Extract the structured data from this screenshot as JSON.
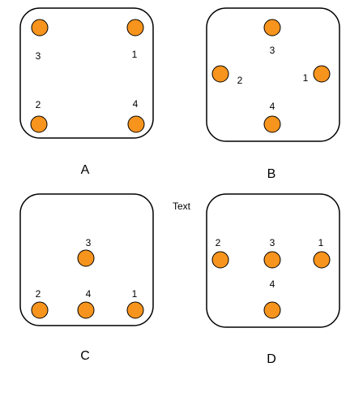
{
  "colors": {
    "dot_fill": "#F7941D",
    "dot_stroke": "#000000",
    "box_stroke": "#000000"
  },
  "free_text": "Text",
  "panels": [
    {
      "caption": "A",
      "dots": [
        {
          "label": "3"
        },
        {
          "label": "1"
        },
        {
          "label": "2"
        },
        {
          "label": "4"
        }
      ]
    },
    {
      "caption": "B",
      "dots": [
        {
          "label": "3"
        },
        {
          "label": "2"
        },
        {
          "label": "1"
        },
        {
          "label": "4"
        }
      ]
    },
    {
      "caption": "C",
      "dots": [
        {
          "label": "3"
        },
        {
          "label": "2"
        },
        {
          "label": "4"
        },
        {
          "label": "1"
        }
      ]
    },
    {
      "caption": "D",
      "dots": [
        {
          "label": "2"
        },
        {
          "label": "3"
        },
        {
          "label": "1"
        },
        {
          "label": "4"
        }
      ]
    }
  ]
}
